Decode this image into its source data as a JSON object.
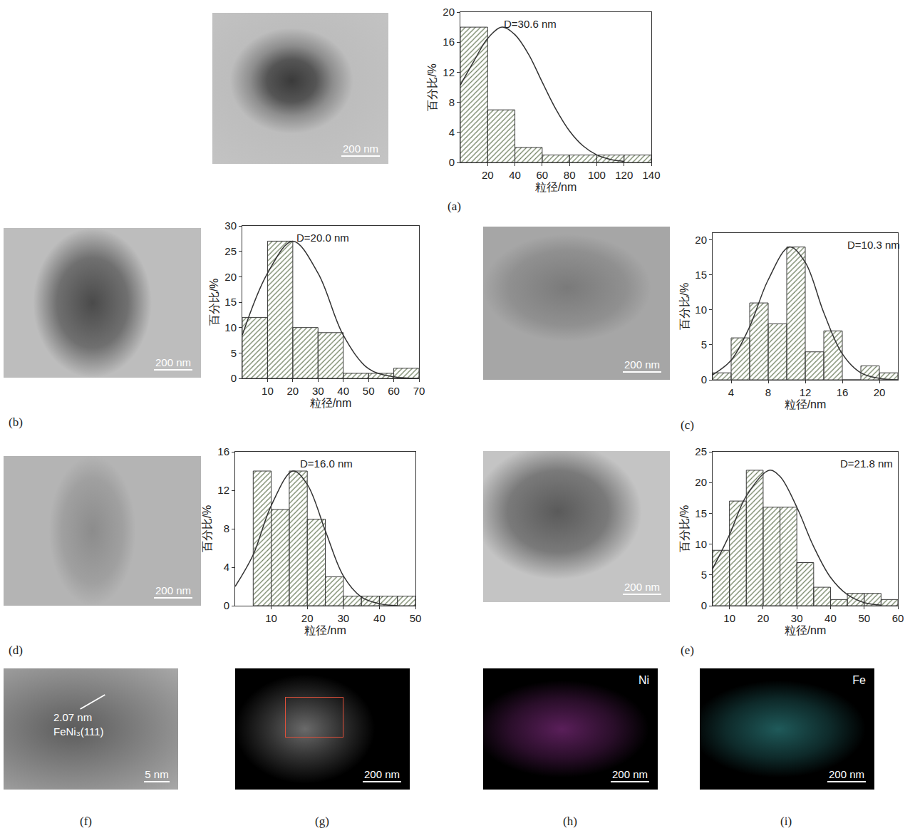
{
  "chart_data": [
    {
      "type": "histogram",
      "annotation": "D=30.6 nm",
      "xlabel": "粒径/nm",
      "ylabel": "百分比/%",
      "bins": [
        0,
        20,
        40,
        60,
        80,
        100,
        120,
        140
      ],
      "values": [
        18,
        7,
        2,
        1,
        1,
        1,
        1
      ],
      "color": "#b8bd7c",
      "fit": {
        "type": "line",
        "x": [
          0,
          10,
          20,
          30.6,
          40,
          50,
          60,
          70,
          80,
          90,
          100,
          110,
          120
        ],
        "values": [
          10.3,
          13.5,
          16.5,
          18,
          17,
          14.4,
          10.7,
          7.1,
          4.2,
          2.2,
          1,
          0.4,
          0.15
        ],
        "color": "#333333"
      },
      "xlim": [
        0,
        140
      ],
      "xticks": [
        20,
        40,
        60,
        80,
        100,
        120,
        140
      ],
      "ylim": [
        0,
        20
      ],
      "yticks": [
        0,
        4,
        8,
        12,
        16,
        20
      ]
    },
    {
      "type": "histogram",
      "annotation": "D=20.0 nm",
      "xlabel": "粒径/nm",
      "ylabel": "百分比/%",
      "bins": [
        0,
        10,
        20,
        30,
        40,
        50,
        60,
        70
      ],
      "values": [
        12,
        27,
        10,
        9,
        1,
        1,
        2
      ],
      "color": "#b8bd7c",
      "fit": {
        "type": "line",
        "x": [
          0,
          10,
          20,
          30,
          40,
          50,
          60,
          70
        ],
        "values": [
          8.5,
          20.7,
          27,
          20.7,
          8.5,
          1.9,
          0.3,
          0
        ],
        "color": "#333333"
      },
      "xlim": [
        0,
        70
      ],
      "xticks": [
        10,
        20,
        30,
        40,
        50,
        60,
        70
      ],
      "ylim": [
        0,
        30
      ],
      "yticks": [
        0,
        5,
        10,
        15,
        20,
        25,
        30
      ]
    },
    {
      "type": "histogram",
      "annotation": "D=10.3 nm",
      "xlabel": "粒径/nm",
      "ylabel": "百分比/%",
      "bins": [
        2,
        4,
        6,
        8,
        10,
        12,
        14,
        16,
        18,
        20,
        22
      ],
      "values": [
        1,
        6,
        11,
        8,
        19,
        4,
        7,
        0,
        2,
        1
      ],
      "color": "#b8bd7c",
      "fit": {
        "type": "line",
        "x": [
          2,
          4,
          6,
          8,
          10.3,
          12,
          14,
          16,
          18,
          20,
          22
        ],
        "values": [
          0.7,
          2.8,
          7.6,
          14.3,
          19,
          16.8,
          9.6,
          3.7,
          1,
          0.2,
          0
        ],
        "color": "#333333"
      },
      "xlim": [
        2,
        22
      ],
      "xticks": [
        4,
        8,
        12,
        16,
        20
      ],
      "ylim": [
        0,
        21
      ],
      "yticks": [
        0,
        5,
        10,
        15,
        20
      ]
    },
    {
      "type": "histogram",
      "annotation": "D=16.0 nm",
      "xlabel": "粒径/nm",
      "ylabel": "百分比/%",
      "bins": [
        5,
        10,
        15,
        20,
        25,
        30,
        35,
        40,
        45,
        50
      ],
      "values": [
        14,
        10,
        14,
        9,
        3,
        1,
        1,
        1,
        1
      ],
      "color": "#b8bd7c",
      "fit": {
        "type": "line",
        "x": [
          0,
          5,
          10,
          16,
          20,
          25,
          30,
          35,
          40,
          45
        ],
        "values": [
          2,
          5.3,
          10.4,
          14,
          12.6,
          7.8,
          3.1,
          0.9,
          0.2,
          0
        ],
        "color": "#333333"
      },
      "xlim": [
        0,
        50
      ],
      "xticks": [
        10,
        20,
        30,
        40,
        50
      ],
      "ylim": [
        0,
        16
      ],
      "yticks": [
        0,
        4,
        8,
        12,
        16
      ]
    },
    {
      "type": "histogram",
      "annotation": "D=21.8 nm",
      "xlabel": "粒径/nm",
      "ylabel": "百分比/%",
      "bins": [
        5,
        10,
        15,
        20,
        25,
        30,
        35,
        40,
        45,
        50,
        55,
        60
      ],
      "values": [
        9,
        17,
        22,
        16,
        16,
        7,
        3,
        1,
        2,
        2,
        1
      ],
      "color": "#b8bd7c",
      "fit": {
        "type": "line",
        "x": [
          5,
          10,
          15,
          21.8,
          25,
          30,
          35,
          40,
          45,
          50,
          55
        ],
        "values": [
          6,
          11.5,
          17.8,
          22,
          21,
          16,
          9.6,
          4.6,
          1.8,
          0.5,
          0.1
        ],
        "color": "#333333"
      },
      "xlim": [
        5,
        60
      ],
      "xticks": [
        10,
        20,
        30,
        40,
        50,
        60
      ],
      "ylim": [
        0,
        25
      ],
      "yticks": [
        0,
        5,
        10,
        15,
        20,
        25
      ]
    }
  ],
  "images": [
    {
      "label": "(a)",
      "scale_bar": "200 nm"
    },
    {
      "label": "(b)",
      "scale_bar": "200 nm"
    },
    {
      "label": "(c)",
      "scale_bar": "200 nm"
    },
    {
      "label": "(d)",
      "scale_bar": "200 nm"
    },
    {
      "label": "(e)",
      "scale_bar": "200 nm"
    },
    {
      "label": "(f)",
      "scale_bar": "5 nm",
      "texts": [
        "2.07 nm",
        "FeNi₃(111)"
      ]
    },
    {
      "label": "(g)",
      "scale_bar": "200 nm"
    },
    {
      "label": "(h)",
      "scale_bar": "200 nm",
      "element": "Ni"
    },
    {
      "label": "(i)",
      "scale_bar": "200 nm",
      "element": "Fe"
    }
  ]
}
